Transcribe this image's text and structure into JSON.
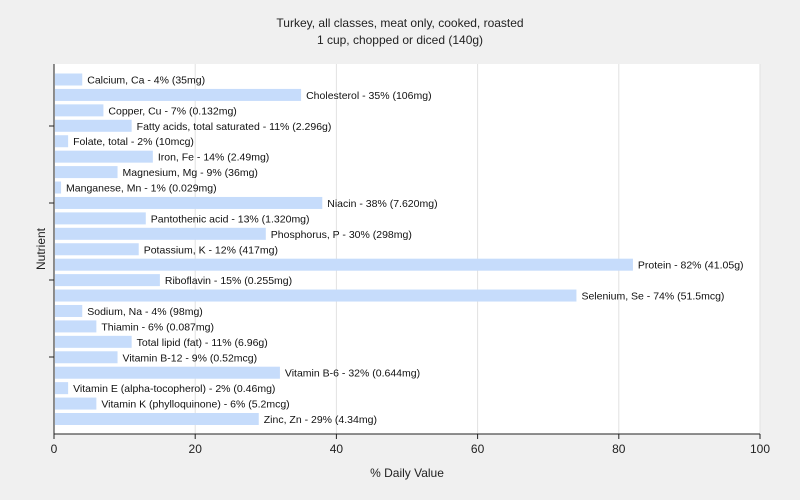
{
  "chart_data": {
    "type": "bar",
    "orientation": "horizontal",
    "title": "Turkey, all classes, meat only, cooked, roasted",
    "subtitle": "1 cup, chopped or diced (140g)",
    "xlabel": "% Daily Value",
    "ylabel": "Nutrient",
    "xlim": [
      0,
      100
    ],
    "xticks": [
      "0",
      "20",
      "40",
      "60",
      "80",
      "100"
    ],
    "grid": true,
    "bar_color": "#c6dcfb",
    "plot_background": "#ffffff",
    "categories": [
      "Calcium, Ca",
      "Cholesterol",
      "Copper, Cu",
      "Fatty acids, total saturated",
      "Folate, total",
      "Iron, Fe",
      "Magnesium, Mg",
      "Manganese, Mn",
      "Niacin",
      "Pantothenic acid",
      "Phosphorus, P",
      "Potassium, K",
      "Protein",
      "Riboflavin",
      "Selenium, Se",
      "Sodium, Na",
      "Thiamin",
      "Total lipid (fat)",
      "Vitamin B-12",
      "Vitamin B-6",
      "Vitamin E (alpha-tocopherol)",
      "Vitamin K (phylloquinone)",
      "Zinc, Zn"
    ],
    "values": [
      4,
      35,
      7,
      11,
      2,
      14,
      9,
      1,
      38,
      13,
      30,
      12,
      82,
      15,
      74,
      4,
      6,
      11,
      9,
      32,
      2,
      6,
      29
    ],
    "labels": [
      "Calcium, Ca - 4% (35mg)",
      "Cholesterol - 35% (106mg)",
      "Copper, Cu - 7% (0.132mg)",
      "Fatty acids, total saturated - 11% (2.296g)",
      "Folate, total - 2% (10mcg)",
      "Iron, Fe - 14% (2.49mg)",
      "Magnesium, Mg - 9% (36mg)",
      "Manganese, Mn - 1% (0.029mg)",
      "Niacin - 38% (7.620mg)",
      "Pantothenic acid - 13% (1.320mg)",
      "Phosphorus, P - 30% (298mg)",
      "Potassium, K - 12% (417mg)",
      "Protein - 82% (41.05g)",
      "Riboflavin - 15% (0.255mg)",
      "Selenium, Se - 74% (51.5mcg)",
      "Sodium, Na - 4% (98mg)",
      "Thiamin - 6% (0.087mg)",
      "Total lipid (fat) - 11% (6.96g)",
      "Vitamin B-12 - 9% (0.52mcg)",
      "Vitamin B-6 - 32% (0.644mg)",
      "Vitamin E (alpha-tocopherol) - 2% (0.46mg)",
      "Vitamin K (phylloquinone) - 6% (5.2mcg)",
      "Zinc, Zn - 29% (4.34mg)"
    ]
  }
}
